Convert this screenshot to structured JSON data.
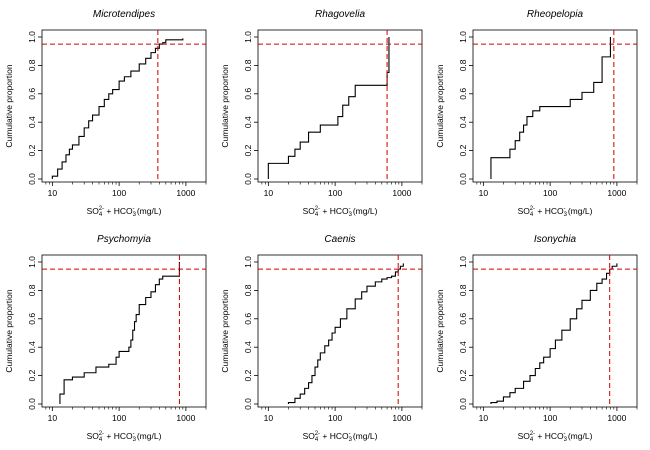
{
  "chart_data": [
    {
      "type": "line",
      "title": "Microtendipes",
      "xlabel": "SO4 + HCO3 (mg/L)",
      "ylabel": "Cumulative proportion",
      "x_scale": "log",
      "xlim": [
        7,
        2000
      ],
      "ylim": [
        0,
        1
      ],
      "x_ticks": [
        "10",
        "100",
        "1000"
      ],
      "y_ticks": [
        "0.0",
        "0.2",
        "0.4",
        "0.6",
        "0.8",
        "1.0"
      ],
      "reference": {
        "y": 0.95,
        "x": 380,
        "color": "#cc0000"
      },
      "series": [
        {
          "x": [
            10,
            12,
            14,
            16,
            18,
            20,
            25,
            30,
            35,
            40,
            50,
            60,
            70,
            80,
            100,
            120,
            150,
            200,
            250,
            300,
            350,
            400,
            450,
            500,
            900
          ],
          "y": [
            0.02,
            0.07,
            0.12,
            0.17,
            0.21,
            0.24,
            0.3,
            0.36,
            0.41,
            0.45,
            0.51,
            0.56,
            0.6,
            0.63,
            0.69,
            0.72,
            0.76,
            0.81,
            0.85,
            0.89,
            0.92,
            0.95,
            0.96,
            0.98,
            0.99
          ]
        }
      ]
    },
    {
      "type": "line",
      "title": "Rhagovelia",
      "xlabel": "SO4 + HCO3 (mg/L)",
      "ylabel": "Cumulative proportion",
      "x_scale": "log",
      "xlim": [
        7,
        2000
      ],
      "ylim": [
        0,
        1
      ],
      "x_ticks": [
        "10",
        "100",
        "1000"
      ],
      "y_ticks": [
        "0.0",
        "0.2",
        "0.4",
        "0.6",
        "0.8",
        "1.0"
      ],
      "reference": {
        "y": 0.95,
        "x": 600,
        "color": "#cc0000"
      },
      "series": [
        {
          "x": [
            10,
            20,
            25,
            30,
            40,
            60,
            110,
            130,
            160,
            200,
            600,
            640
          ],
          "y": [
            0.11,
            0.16,
            0.21,
            0.26,
            0.33,
            0.38,
            0.44,
            0.52,
            0.58,
            0.66,
            0.75,
            1.0
          ]
        }
      ]
    },
    {
      "type": "line",
      "title": "Rheopelopia",
      "xlabel": "SO4 + HCO3 (mg/L)",
      "ylabel": "Cumulative proportion",
      "x_scale": "log",
      "xlim": [
        7,
        2000
      ],
      "ylim": [
        0,
        1
      ],
      "x_ticks": [
        "10",
        "100",
        "1000"
      ],
      "y_ticks": [
        "0.0",
        "0.2",
        "0.4",
        "0.6",
        "0.8",
        "1.0"
      ],
      "reference": {
        "y": 0.95,
        "x": 900,
        "color": "#cc0000"
      },
      "series": [
        {
          "x": [
            13,
            25,
            30,
            35,
            40,
            45,
            55,
            70,
            200,
            300,
            450,
            600,
            800
          ],
          "y": [
            0.15,
            0.21,
            0.27,
            0.33,
            0.38,
            0.44,
            0.48,
            0.51,
            0.56,
            0.61,
            0.68,
            0.86,
            1.0
          ]
        }
      ]
    },
    {
      "type": "line",
      "title": "Psychomyia",
      "xlabel": "SO4 + HCO3 (mg/L)",
      "ylabel": "Cumulative proportion",
      "x_scale": "log",
      "xlim": [
        7,
        2000
      ],
      "ylim": [
        0,
        1
      ],
      "x_ticks": [
        "10",
        "100",
        "1000"
      ],
      "y_ticks": [
        "0.0",
        "0.2",
        "0.4",
        "0.6",
        "0.8",
        "1.0"
      ],
      "reference": {
        "y": 0.95,
        "x": 800,
        "color": "#cc0000"
      },
      "series": [
        {
          "x": [
            13,
            15,
            20,
            30,
            45,
            70,
            90,
            100,
            140,
            150,
            160,
            170,
            180,
            200,
            250,
            300,
            350,
            400,
            450,
            800
          ],
          "y": [
            0.07,
            0.17,
            0.19,
            0.22,
            0.26,
            0.28,
            0.33,
            0.37,
            0.4,
            0.45,
            0.52,
            0.58,
            0.63,
            0.7,
            0.75,
            0.79,
            0.84,
            0.88,
            0.9,
            1.0
          ]
        }
      ]
    },
    {
      "type": "line",
      "title": "Caenis",
      "xlabel": "SO4 + HCO3 (mg/L)",
      "ylabel": "Cumulative proportion",
      "x_scale": "log",
      "xlim": [
        7,
        2000
      ],
      "ylim": [
        0,
        1
      ],
      "x_ticks": [
        "10",
        "100",
        "1000"
      ],
      "y_ticks": [
        "0.0",
        "0.2",
        "0.4",
        "0.6",
        "0.8",
        "1.0"
      ],
      "reference": {
        "y": 0.95,
        "x": 880,
        "color": "#cc0000"
      },
      "series": [
        {
          "x": [
            20,
            25,
            30,
            35,
            40,
            45,
            50,
            55,
            60,
            70,
            80,
            90,
            100,
            120,
            150,
            200,
            250,
            300,
            400,
            500,
            600,
            700,
            800,
            880,
            950,
            1050
          ],
          "y": [
            0.01,
            0.04,
            0.07,
            0.11,
            0.15,
            0.2,
            0.26,
            0.31,
            0.36,
            0.41,
            0.45,
            0.5,
            0.54,
            0.6,
            0.67,
            0.74,
            0.79,
            0.83,
            0.86,
            0.88,
            0.89,
            0.9,
            0.93,
            0.95,
            0.97,
            0.99
          ]
        }
      ]
    },
    {
      "type": "line",
      "title": "Isonychia",
      "xlabel": "SO4 + HCO3 (mg/L)",
      "ylabel": "Cumulative proportion",
      "x_scale": "log",
      "xlim": [
        7,
        2000
      ],
      "ylim": [
        0,
        1
      ],
      "x_ticks": [
        "10",
        "100",
        "1000"
      ],
      "y_ticks": [
        "0.0",
        "0.2",
        "0.4",
        "0.6",
        "0.8",
        "1.0"
      ],
      "reference": {
        "y": 0.95,
        "x": 780,
        "color": "#cc0000"
      },
      "series": [
        {
          "x": [
            13,
            16,
            20,
            25,
            30,
            40,
            50,
            60,
            70,
            80,
            100,
            120,
            150,
            200,
            250,
            300,
            400,
            500,
            600,
            700,
            780,
            850,
            1000
          ],
          "y": [
            0.01,
            0.02,
            0.05,
            0.08,
            0.11,
            0.16,
            0.2,
            0.25,
            0.29,
            0.33,
            0.39,
            0.45,
            0.52,
            0.6,
            0.67,
            0.73,
            0.8,
            0.85,
            0.88,
            0.92,
            0.95,
            0.97,
            0.99
          ]
        }
      ]
    }
  ]
}
